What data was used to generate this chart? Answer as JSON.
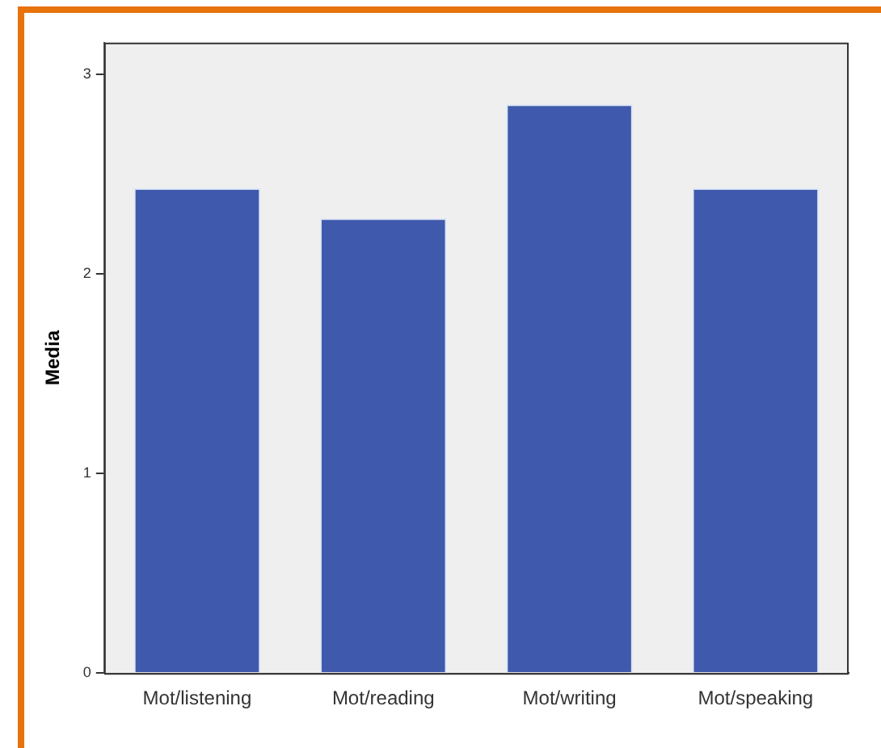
{
  "chart_data": {
    "type": "bar",
    "ylabel": "Media",
    "categories": [
      "Mot/listening",
      "Mot/reading",
      "Mot/writing",
      "Mot/speaking"
    ],
    "values": [
      2.43,
      2.28,
      2.85,
      2.43
    ],
    "color": "#3f59ac",
    "ylim": [
      0,
      3.16
    ],
    "yticks": [
      0,
      1,
      2,
      3
    ],
    "grid": false,
    "legend": false
  }
}
